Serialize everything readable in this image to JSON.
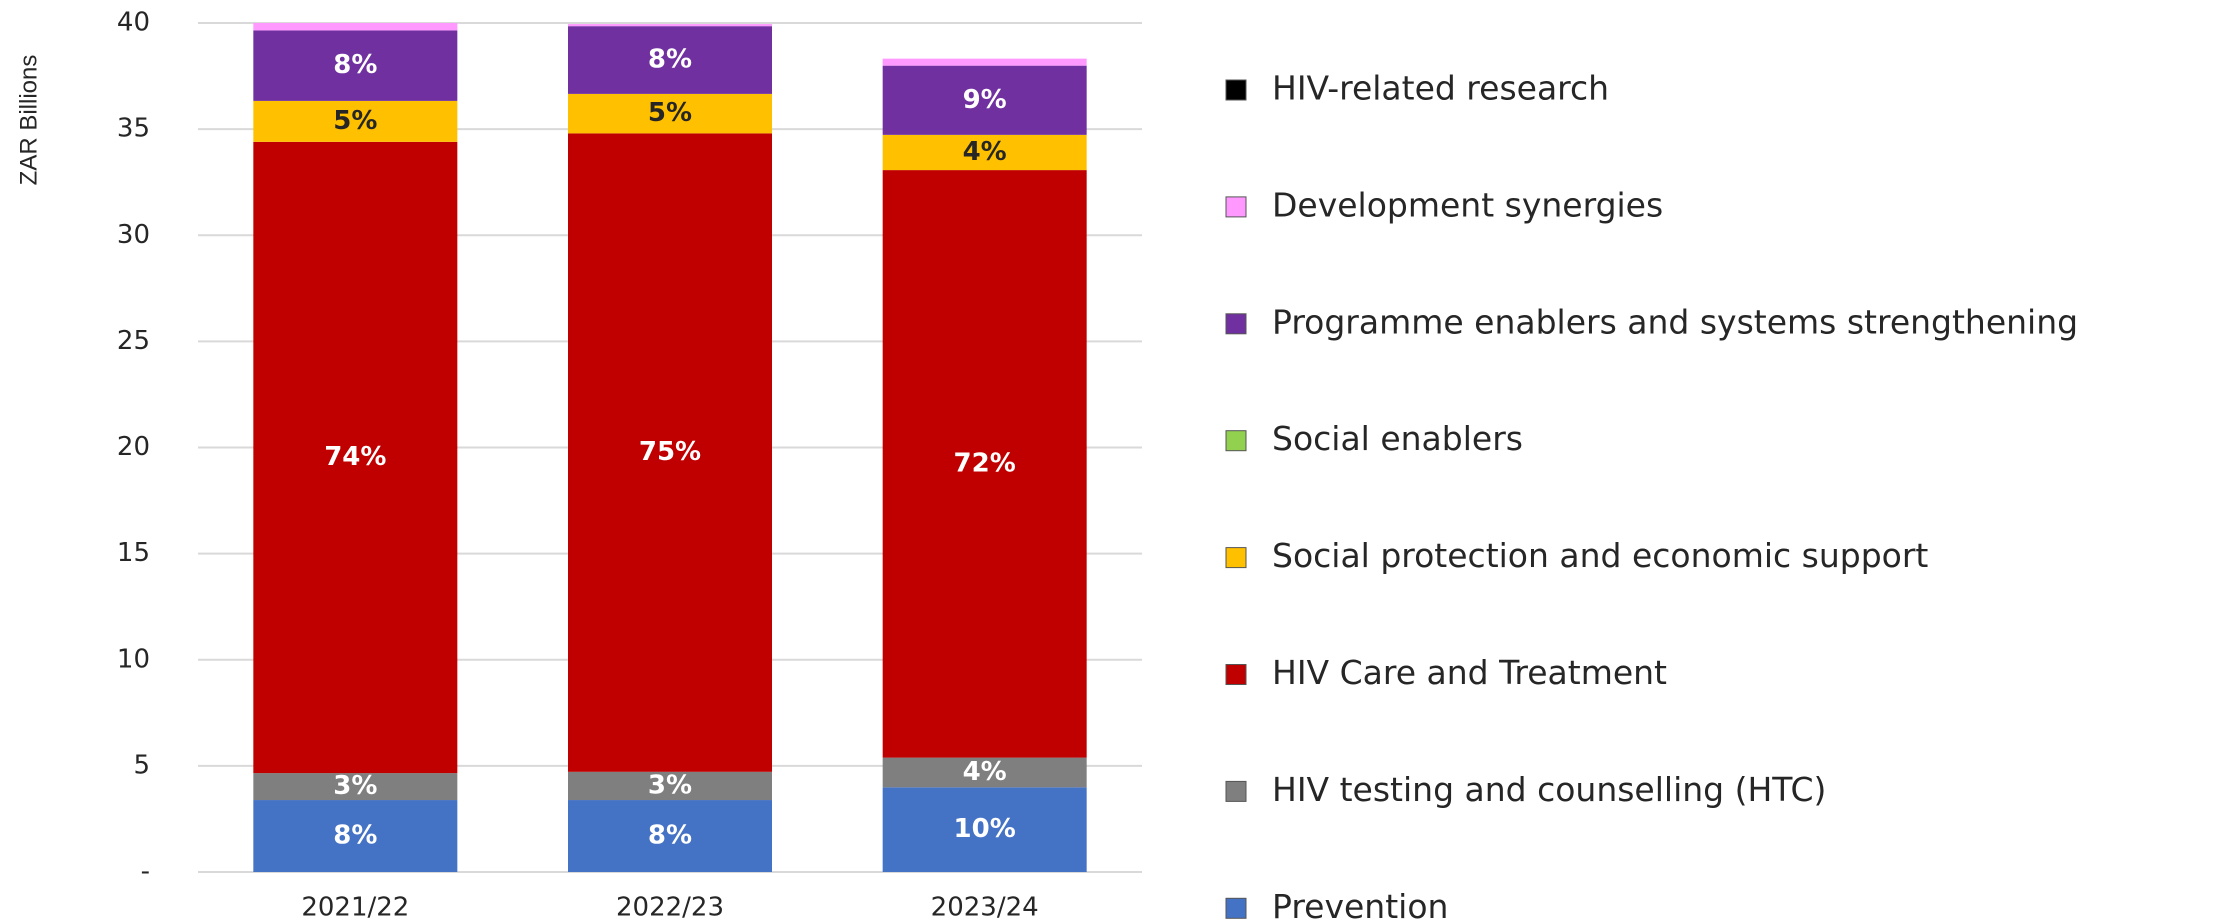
{
  "chart_data": {
    "type": "stacked_bar",
    "y_label": "ZAR Billions",
    "categories": [
      "2021/22",
      "2022/23",
      "2023/24"
    ],
    "ylim": [
      0,
      40
    ],
    "yticks": [
      {
        "value": 0,
        "label": "-"
      },
      5,
      10,
      15,
      20,
      25,
      30,
      35,
      40
    ],
    "grid": true,
    "legend": "right",
    "series": [
      {
        "name": "Prevention",
        "color": "#4472c4",
        "values": [
          3.39,
          3.39,
          3.99
        ],
        "value_labels": [
          "8%",
          "8%",
          "10%"
        ]
      },
      {
        "name": "HIV testing and counselling (HTC)",
        "color": "#7f7f7f",
        "values": [
          1.27,
          1.33,
          1.4
        ],
        "value_labels": [
          "3%",
          "3%",
          "4%"
        ]
      },
      {
        "name": "HIV Care and Treatment",
        "color": "#c00000",
        "values": [
          29.74,
          30.08,
          27.68
        ],
        "value_labels": [
          "74%",
          "75%",
          "72%"
        ]
      },
      {
        "name": "Social protection and economic support",
        "color": "#ffc000",
        "values": [
          1.93,
          1.86,
          1.66
        ],
        "value_labels": [
          "5%",
          "5%",
          "4%"
        ]
      },
      {
        "name": "Social enablers",
        "color": "#92d050",
        "values": [
          0,
          0,
          0
        ]
      },
      {
        "name": "Programme enablers and systems strengthening",
        "color": "#7030a0",
        "values": [
          3.32,
          3.19,
          3.26
        ],
        "value_labels": [
          "8%",
          "8%",
          "9%"
        ]
      },
      {
        "name": "Development synergies",
        "color": "#ff99ff",
        "values": [
          0.35,
          0.1,
          0.33
        ]
      },
      {
        "name": "HIV-related research",
        "color": "#000000",
        "values": [
          0,
          0,
          0
        ]
      }
    ]
  }
}
